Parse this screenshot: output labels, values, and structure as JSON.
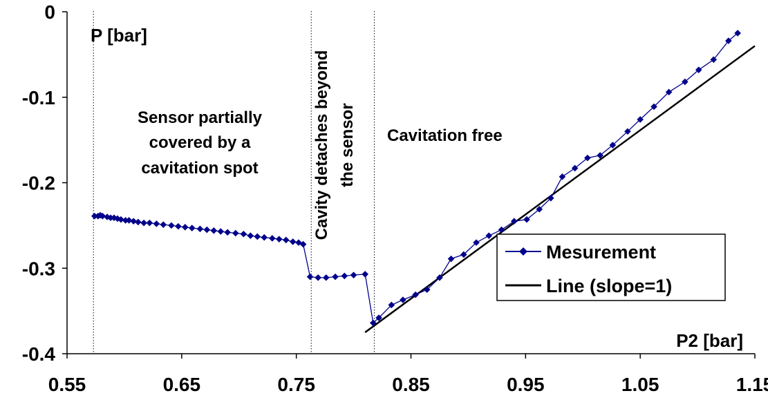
{
  "chart_data": {
    "type": "line",
    "xlabel": "P2 [bar]",
    "ylabel": "P [bar]",
    "xlim": [
      0.55,
      1.15
    ],
    "ylim": [
      -0.4,
      0
    ],
    "x_ticks": [
      0.55,
      0.65,
      0.75,
      0.85,
      0.95,
      1.05,
      1.15
    ],
    "x_tick_labels": [
      "0.55",
      "0.65",
      "0.75",
      "0.85",
      "0.95",
      "1.05",
      "1.15"
    ],
    "y_ticks": [
      0,
      -0.1,
      -0.2,
      -0.3,
      -0.4
    ],
    "y_tick_labels": [
      "0",
      "-0.1",
      "-0.2",
      "-0.3",
      "-0.4"
    ],
    "grid": false,
    "legend_position": "lower-right",
    "vertical_lines_x": [
      0.573,
      0.763,
      0.818
    ],
    "annotations": [
      {
        "lines": [
          "Sensor partially",
          "covered by a",
          "cavitation spot"
        ]
      },
      {
        "lines": [
          "Cavity detaches beyond",
          "the sensor"
        ],
        "rotated": true
      },
      {
        "lines": [
          "Cavitation free"
        ]
      }
    ],
    "series": [
      {
        "name": "Mesurement",
        "color": "#00008b",
        "marker": "diamond",
        "points": [
          [
            0.574,
            -0.239
          ],
          [
            0.577,
            -0.239
          ],
          [
            0.579,
            -0.238
          ],
          [
            0.581,
            -0.239
          ],
          [
            0.585,
            -0.24
          ],
          [
            0.588,
            -0.241
          ],
          [
            0.591,
            -0.241
          ],
          [
            0.594,
            -0.242
          ],
          [
            0.597,
            -0.243
          ],
          [
            0.601,
            -0.244
          ],
          [
            0.604,
            -0.244
          ],
          [
            0.608,
            -0.245
          ],
          [
            0.612,
            -0.246
          ],
          [
            0.617,
            -0.247
          ],
          [
            0.622,
            -0.247
          ],
          [
            0.628,
            -0.248
          ],
          [
            0.634,
            -0.249
          ],
          [
            0.641,
            -0.25
          ],
          [
            0.647,
            -0.251
          ],
          [
            0.653,
            -0.252
          ],
          [
            0.659,
            -0.253
          ],
          [
            0.666,
            -0.254
          ],
          [
            0.672,
            -0.255
          ],
          [
            0.678,
            -0.256
          ],
          [
            0.684,
            -0.257
          ],
          [
            0.69,
            -0.258
          ],
          [
            0.697,
            -0.259
          ],
          [
            0.704,
            -0.26
          ],
          [
            0.71,
            -0.262
          ],
          [
            0.716,
            -0.263
          ],
          [
            0.722,
            -0.264
          ],
          [
            0.729,
            -0.265
          ],
          [
            0.735,
            -0.266
          ],
          [
            0.741,
            -0.267
          ],
          [
            0.747,
            -0.269
          ],
          [
            0.752,
            -0.27
          ],
          [
            0.756,
            -0.272
          ],
          [
            0.762,
            -0.31
          ],
          [
            0.769,
            -0.311
          ],
          [
            0.776,
            -0.311
          ],
          [
            0.784,
            -0.31
          ],
          [
            0.792,
            -0.309
          ],
          [
            0.8,
            -0.308
          ],
          [
            0.81,
            -0.307
          ],
          [
            0.817,
            -0.364
          ],
          [
            0.822,
            -0.358
          ],
          [
            0.833,
            -0.343
          ],
          [
            0.843,
            -0.337
          ],
          [
            0.854,
            -0.331
          ],
          [
            0.864,
            -0.325
          ],
          [
            0.875,
            -0.311
          ],
          [
            0.885,
            -0.289
          ],
          [
            0.896,
            -0.284
          ],
          [
            0.907,
            -0.27
          ],
          [
            0.918,
            -0.262
          ],
          [
            0.929,
            -0.255
          ],
          [
            0.94,
            -0.245
          ],
          [
            0.951,
            -0.243
          ],
          [
            0.962,
            -0.231
          ],
          [
            0.972,
            -0.218
          ],
          [
            0.982,
            -0.193
          ],
          [
            0.993,
            -0.183
          ],
          [
            1.004,
            -0.171
          ],
          [
            1.015,
            -0.168
          ],
          [
            1.026,
            -0.156
          ],
          [
            1.039,
            -0.14
          ],
          [
            1.05,
            -0.126
          ],
          [
            1.062,
            -0.111
          ],
          [
            1.075,
            -0.094
          ],
          [
            1.089,
            -0.082
          ],
          [
            1.101,
            -0.068
          ],
          [
            1.114,
            -0.056
          ],
          [
            1.127,
            -0.034
          ],
          [
            1.135,
            -0.025
          ]
        ]
      },
      {
        "name": "Line (slope=1)",
        "color": "#000000",
        "points": [
          [
            0.81,
            -0.375
          ],
          [
            1.15,
            -0.04
          ]
        ]
      }
    ]
  }
}
